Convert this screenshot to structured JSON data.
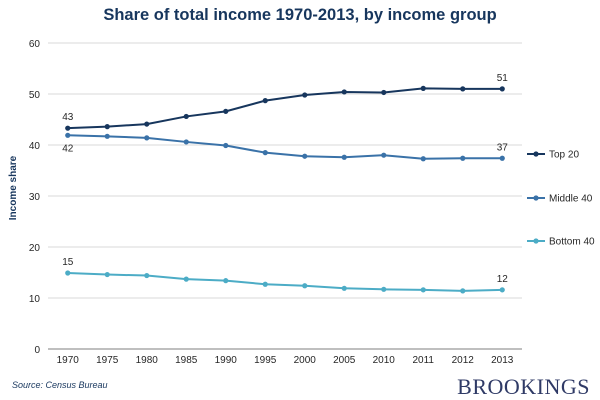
{
  "chart_data": {
    "type": "line",
    "title": "Share of total income 1970-2013, by income group",
    "xlabel": "",
    "ylabel": "Income share",
    "ylim": [
      0,
      60
    ],
    "yticks": [
      0,
      10,
      20,
      30,
      40,
      50,
      60
    ],
    "grid": true,
    "legend_position": "right",
    "categories": [
      "1970",
      "1975",
      "1980",
      "1985",
      "1990",
      "1995",
      "2000",
      "2005",
      "2010",
      "2011",
      "2012",
      "2013"
    ],
    "series": [
      {
        "name": "Top 20",
        "color": "#17365d",
        "values": [
          43.3,
          43.6,
          44.1,
          45.6,
          46.6,
          48.7,
          49.8,
          50.4,
          50.3,
          51.1,
          51.0,
          51.0
        ],
        "start_label": "43",
        "end_label": "51"
      },
      {
        "name": "Middle 40",
        "color": "#3a72a8",
        "values": [
          41.9,
          41.7,
          41.4,
          40.6,
          39.9,
          38.5,
          37.8,
          37.6,
          38.0,
          37.3,
          37.4,
          37.4
        ],
        "start_label": "42",
        "end_label": "37"
      },
      {
        "name": "Bottom 40",
        "color": "#4cacc6",
        "values": [
          14.9,
          14.6,
          14.4,
          13.7,
          13.4,
          12.7,
          12.4,
          11.9,
          11.7,
          11.6,
          11.4,
          11.6
        ],
        "start_label": "15",
        "end_label": "12"
      }
    ]
  },
  "source": "Source: Census Bureau",
  "brand": "BROOKINGS"
}
